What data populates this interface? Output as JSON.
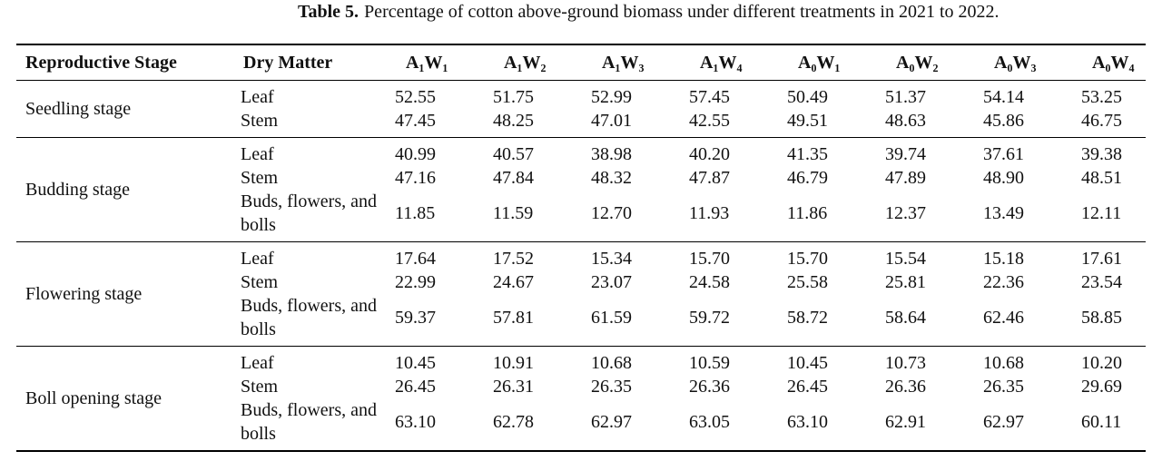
{
  "caption": {
    "label": "Table 5.",
    "text": "Percentage of cotton above-ground biomass under different treatments in 2021 to 2022."
  },
  "table": {
    "headers": [
      "Reproductive Stage",
      "Dry Matter",
      "A₁W₁",
      "A₁W₂",
      "A₁W₃",
      "A₁W₄",
      "A₀W₁",
      "A₀W₂",
      "A₀W₃",
      "A₀W₄"
    ],
    "groups": [
      {
        "stage": "Seedling stage",
        "rows": [
          {
            "matter": "Leaf",
            "values": [
              "52.55",
              "51.75",
              "52.99",
              "57.45",
              "50.49",
              "51.37",
              "54.14",
              "53.25"
            ]
          },
          {
            "matter": "Stem",
            "values": [
              "47.45",
              "48.25",
              "47.01",
              "42.55",
              "49.51",
              "48.63",
              "45.86",
              "46.75"
            ]
          }
        ]
      },
      {
        "stage": "Budding stage",
        "rows": [
          {
            "matter": "Leaf",
            "values": [
              "40.99",
              "40.57",
              "38.98",
              "40.20",
              "41.35",
              "39.74",
              "37.61",
              "39.38"
            ]
          },
          {
            "matter": "Stem",
            "values": [
              "47.16",
              "47.84",
              "48.32",
              "47.87",
              "46.79",
              "47.89",
              "48.90",
              "48.51"
            ]
          },
          {
            "matter": "Buds, flowers, and bolls",
            "values": [
              "11.85",
              "11.59",
              "12.70",
              "11.93",
              "11.86",
              "12.37",
              "13.49",
              "12.11"
            ]
          }
        ]
      },
      {
        "stage": "Flowering stage",
        "rows": [
          {
            "matter": "Leaf",
            "values": [
              "17.64",
              "17.52",
              "15.34",
              "15.70",
              "15.70",
              "15.54",
              "15.18",
              "17.61"
            ]
          },
          {
            "matter": "Stem",
            "values": [
              "22.99",
              "24.67",
              "23.07",
              "24.58",
              "25.58",
              "25.81",
              "22.36",
              "23.54"
            ]
          },
          {
            "matter": "Buds, flowers, and bolls",
            "values": [
              "59.37",
              "57.81",
              "61.59",
              "59.72",
              "58.72",
              "58.64",
              "62.46",
              "58.85"
            ]
          }
        ]
      },
      {
        "stage": "Boll opening stage",
        "rows": [
          {
            "matter": "Leaf",
            "values": [
              "10.45",
              "10.91",
              "10.68",
              "10.59",
              "10.45",
              "10.73",
              "10.68",
              "10.20"
            ]
          },
          {
            "matter": "Stem",
            "values": [
              "26.45",
              "26.31",
              "26.35",
              "26.36",
              "26.45",
              "26.36",
              "26.35",
              "29.69"
            ]
          },
          {
            "matter": "Buds, flowers, and bolls",
            "values": [
              "63.10",
              "62.78",
              "62.97",
              "63.05",
              "63.10",
              "62.91",
              "62.97",
              "60.11"
            ]
          }
        ]
      }
    ]
  }
}
